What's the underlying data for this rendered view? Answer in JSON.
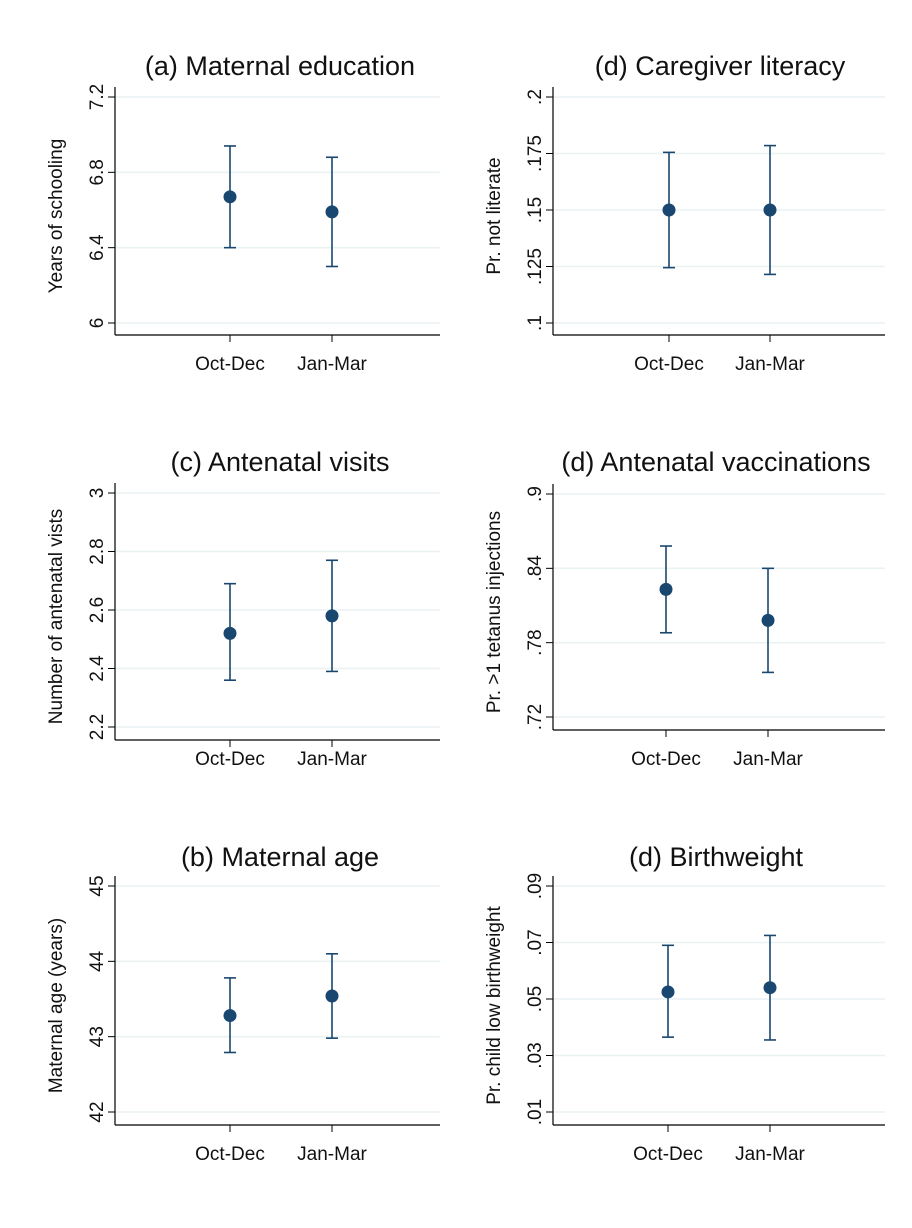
{
  "chart_data": [
    {
      "type": "scatter",
      "title": "(a) Maternal education",
      "xlabel": "",
      "ylabel": "Years of schooling",
      "categories": [
        "Oct-Dec",
        "Jan-Mar"
      ],
      "ylim": [
        6,
        7.2
      ],
      "yticks": [
        "6",
        "6.4",
        "6.8",
        "7.2"
      ],
      "grid": true,
      "points": [
        {
          "category": "Oct-Dec",
          "estimate": 6.67,
          "ci_low": 6.4,
          "ci_high": 6.94
        },
        {
          "category": "Jan-Mar",
          "estimate": 6.59,
          "ci_low": 6.3,
          "ci_high": 6.88
        }
      ]
    },
    {
      "type": "scatter",
      "title": "(d) Caregiver literacy",
      "xlabel": "",
      "ylabel": "Pr. not literate",
      "categories": [
        "Oct-Dec",
        "Jan-Mar"
      ],
      "ylim": [
        0.1,
        0.2
      ],
      "yticks": [
        ".1",
        ".125",
        ".15",
        ".175",
        ".2"
      ],
      "grid": true,
      "points": [
        {
          "category": "Oct-Dec",
          "estimate": 0.15,
          "ci_low": 0.1245,
          "ci_high": 0.1755
        },
        {
          "category": "Jan-Mar",
          "estimate": 0.15,
          "ci_low": 0.1215,
          "ci_high": 0.1785
        }
      ]
    },
    {
      "type": "scatter",
      "title": "(c) Antenatal visits",
      "xlabel": "",
      "ylabel": "Number of antenatal vists",
      "categories": [
        "Oct-Dec",
        "Jan-Mar"
      ],
      "ylim": [
        2.2,
        3
      ],
      "yticks": [
        "2.2",
        "2.4",
        "2.6",
        "2.8",
        "3"
      ],
      "grid": true,
      "points": [
        {
          "category": "Oct-Dec",
          "estimate": 2.52,
          "ci_low": 2.36,
          "ci_high": 2.69
        },
        {
          "category": "Jan-Mar",
          "estimate": 2.58,
          "ci_low": 2.39,
          "ci_high": 2.77
        }
      ]
    },
    {
      "type": "scatter",
      "title": "(d) Antenatal vaccinations",
      "xlabel": "",
      "ylabel": "Pr. >1 tetanus injections",
      "categories": [
        "Oct-Dec",
        "Jan-Mar"
      ],
      "ylim": [
        0.72,
        0.9
      ],
      "yticks": [
        ".72",
        ".78",
        ".84",
        ".9"
      ],
      "grid": true,
      "points": [
        {
          "category": "Oct-Dec",
          "estimate": 0.823,
          "ci_low": 0.788,
          "ci_high": 0.858
        },
        {
          "category": "Jan-Mar",
          "estimate": 0.798,
          "ci_low": 0.756,
          "ci_high": 0.84
        }
      ]
    },
    {
      "type": "scatter",
      "title": "(b) Maternal age",
      "xlabel": "",
      "ylabel": "Maternal age (years)",
      "categories": [
        "Oct-Dec",
        "Jan-Mar"
      ],
      "ylim": [
        42,
        45
      ],
      "yticks": [
        "42",
        "43",
        "44",
        "45"
      ],
      "grid": true,
      "points": [
        {
          "category": "Oct-Dec",
          "estimate": 43.28,
          "ci_low": 42.79,
          "ci_high": 43.78
        },
        {
          "category": "Jan-Mar",
          "estimate": 43.54,
          "ci_low": 42.98,
          "ci_high": 44.1
        }
      ]
    },
    {
      "type": "scatter",
      "title": "(d) Birthweight",
      "xlabel": "",
      "ylabel": "Pr. child low birthweight",
      "categories": [
        "Oct-Dec",
        "Jan-Mar"
      ],
      "ylim": [
        0.01,
        0.09
      ],
      "yticks": [
        ".01",
        ".03",
        ".05",
        ".07",
        ".09"
      ],
      "grid": true,
      "points": [
        {
          "category": "Oct-Dec",
          "estimate": 0.0525,
          "ci_low": 0.0365,
          "ci_high": 0.069
        },
        {
          "category": "Jan-Mar",
          "estimate": 0.054,
          "ci_low": 0.0355,
          "ci_high": 0.0725
        }
      ]
    }
  ],
  "colors": {
    "marker": "#1a476f",
    "grid": "#eaf2f3",
    "axis": "#000000",
    "text": "#111111"
  }
}
